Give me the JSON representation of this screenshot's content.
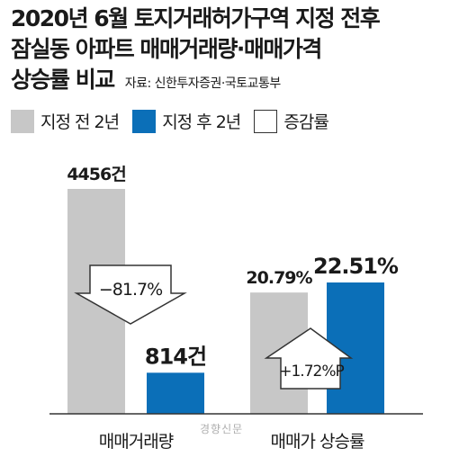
{
  "header": {
    "title_line1": "2020년 6월 토지거래허가구역 지정 전후",
    "title_line2": "잠실동 아파트 매매거래량·매매가격",
    "title_line3": "상승률 비교",
    "source": "자료: 신한투자증권·국토교통부"
  },
  "legend": [
    {
      "label": "지정 전 2년",
      "color": "#c7c7c7"
    },
    {
      "label": "지정 후 2년",
      "color": "#0b6fb8"
    },
    {
      "label": "증감률",
      "color": "#ffffff"
    }
  ],
  "credit": "경향신문",
  "chart_data": {
    "type": "bar",
    "title": "2020년 6월 토지거래허가구역 지정 전후 잠실동 아파트 매매거래량·매매가격 상승률 비교",
    "categories": [
      "매매거래량",
      "매매가 상승률"
    ],
    "series": [
      {
        "name": "지정 전 2년",
        "color": "#c7c7c7",
        "values": [
          4456,
          20.79
        ],
        "labels": [
          "4456건",
          "20.79%"
        ]
      },
      {
        "name": "지정 후 2년",
        "color": "#0b6fb8",
        "values": [
          814,
          22.51
        ],
        "labels": [
          "814건",
          "22.51%"
        ]
      }
    ],
    "changes": [
      {
        "category": "매매거래량",
        "label": "−81.7%",
        "direction": "down"
      },
      {
        "category": "매매가 상승률",
        "label": "+1.72%P",
        "direction": "up"
      }
    ],
    "group_ranges": [
      [
        0,
        4456
      ],
      [
        0,
        22.51
      ]
    ],
    "legend_position": "top",
    "grid": false
  },
  "colors": {
    "axis": "#333333",
    "text": "#1a1a1a",
    "arrow_stroke": "#333333"
  }
}
